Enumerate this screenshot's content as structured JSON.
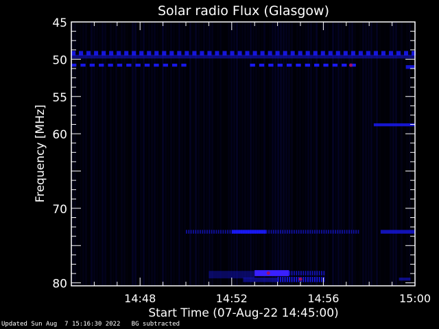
{
  "chart_data": {
    "type": "heatmap",
    "title": "Solar radio Flux (Glasgow)",
    "xlabel": "Start Time (07-Aug-22 14:45:00)",
    "ylabel": "Frequency [MHz]",
    "xlim": [
      "14:45",
      "15:00"
    ],
    "ylim": [
      80.4,
      45
    ],
    "x_ticks": [
      "14:48",
      "14:52",
      "14:56",
      "15:00"
    ],
    "y_ticks": [
      "45",
      "50",
      "55",
      "60",
      "70",
      "80"
    ],
    "colormap": {
      "low": "#000008",
      "high": "#1a1aff",
      "peak": "#a01060"
    },
    "features": [
      {
        "t_start": "14:45",
        "t_end": "15:00",
        "f_low": 49.4,
        "f_high": 49.9,
        "intensity": 0.45
      },
      {
        "t_start": "14:45",
        "t_end": "15:00",
        "f_low": 48.9,
        "f_high": 49.5,
        "intensity": 0.85,
        "periodic_min": 0.33
      },
      {
        "t_start": "14:45",
        "t_end": "14:50",
        "f_low": 50.6,
        "f_high": 51.0,
        "intensity": 0.9,
        "periodic_min": 0.4
      },
      {
        "t_start": "14:52.8",
        "t_end": "14:57.2",
        "f_low": 50.6,
        "f_high": 51.0,
        "intensity": 0.95,
        "periodic_min": 0.4
      },
      {
        "t_start": "14:59.6",
        "t_end": "15:00",
        "f_low": 50.8,
        "f_high": 51.3,
        "intensity": 0.8
      },
      {
        "t_start": "14:58.2",
        "t_end": "15:00",
        "f_low": 58.6,
        "f_high": 59.0,
        "intensity": 0.8
      },
      {
        "t_start": "14:50",
        "t_end": "14:57.5",
        "f_low": 72.9,
        "f_high": 73.4,
        "intensity": 0.6,
        "periodic_min": 0.1
      },
      {
        "t_start": "14:52",
        "t_end": "14:53.5",
        "f_low": 72.9,
        "f_high": 73.4,
        "intensity": 0.9
      },
      {
        "t_start": "14:58.5",
        "t_end": "15:00",
        "f_low": 72.9,
        "f_high": 73.4,
        "intensity": 0.7
      },
      {
        "t_start": "14:51",
        "t_end": "14:53",
        "f_low": 78.4,
        "f_high": 79.4,
        "intensity": 0.35
      },
      {
        "t_start": "14:53",
        "t_end": "14:54.5",
        "f_low": 78.3,
        "f_high": 79.1,
        "intensity": 1.0
      },
      {
        "t_start": "14:54.5",
        "t_end": "14:56",
        "f_low": 78.4,
        "f_high": 79.0,
        "intensity": 0.7,
        "periodic_min": 0.1
      },
      {
        "t_start": "14:54",
        "t_end": "14:56",
        "f_low": 79.2,
        "f_high": 79.9,
        "intensity": 0.9,
        "periodic_min": 0.1
      },
      {
        "t_start": "14:52.5",
        "t_end": "14:54",
        "f_low": 79.3,
        "f_high": 79.9,
        "intensity": 0.45
      },
      {
        "t_start": "14:59.3",
        "t_end": "14:59.8",
        "f_low": 79.3,
        "f_high": 79.7,
        "intensity": 0.5
      }
    ]
  },
  "footer": {
    "updated": "Updated Sun Aug  7 15:16:30 2022",
    "note": "BG subtracted"
  }
}
